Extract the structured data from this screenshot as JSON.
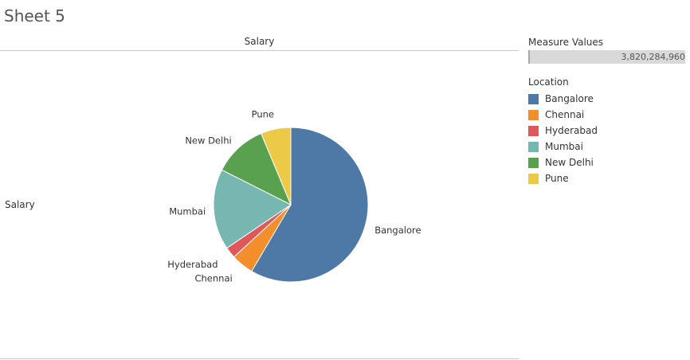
{
  "sheet": {
    "title": "Sheet 5"
  },
  "measure_legend": {
    "title": "Measure Values",
    "value": "3,820,284,960"
  },
  "chart_data": {
    "type": "pie",
    "column_header": "Salary",
    "row_header": "Salary",
    "legend_title": "Location",
    "legend_placement": "right",
    "total": 3820284960,
    "slices": [
      {
        "label": "Bangalore",
        "value": 2233520000,
        "color": "#4e79a7"
      },
      {
        "label": "Chennai",
        "value": 180000000,
        "color": "#f28e2b"
      },
      {
        "label": "Hyderabad",
        "value": 89300000,
        "color": "#e15759"
      },
      {
        "label": "Mumbai",
        "value": 646200000,
        "color": "#76b7b2"
      },
      {
        "label": "New Delhi",
        "value": 431000000,
        "color": "#59a14f"
      },
      {
        "label": "Pune",
        "value": 240264960,
        "color": "#edc948"
      }
    ]
  }
}
